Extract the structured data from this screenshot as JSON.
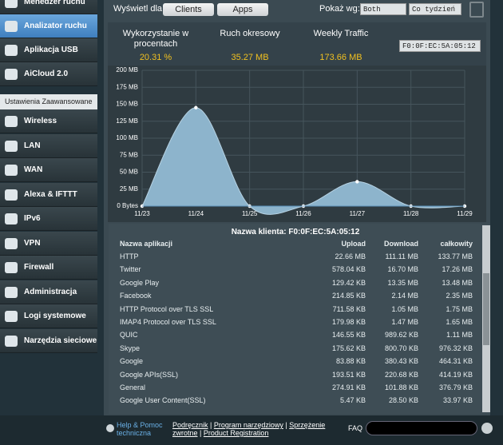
{
  "sidebar": {
    "top_items": [
      "Menedżer ruchu",
      "Analizator ruchu",
      "Aplikacja USB",
      "AiCloud 2.0"
    ],
    "section": "Ustawienia Zaawansowane",
    "items": [
      "Wireless",
      "LAN",
      "WAN",
      "Alexa & IFTTT",
      "IPv6",
      "VPN",
      "Firewall",
      "Administracja",
      "Logi systemowe",
      "Narzędzia sieciowe"
    ]
  },
  "toolbar": {
    "view_label": "Wyświetl dla:",
    "buttons": [
      "Clients",
      "Apps"
    ],
    "show_label": "Pokaż wg:",
    "direction": "Both",
    "period": "Co tydzień"
  },
  "stats": [
    {
      "label": "Wykorzystanie w procentach",
      "value": "20.31 %"
    },
    {
      "label": "Ruch okresowy",
      "value": "35.27 MB"
    },
    {
      "label": "Weekly Traffic",
      "value": "173.66 MB"
    }
  ],
  "client_select": "F0:0F:EC:5A:05:12",
  "chart_data": {
    "type": "area",
    "categories": [
      "11/23",
      "11/24",
      "11/25",
      "11/26",
      "11/27",
      "11/28",
      "11/29"
    ],
    "values": [
      0,
      145,
      0,
      0,
      36,
      0,
      0
    ],
    "color": "#8db4cc",
    "ylim": [
      0,
      200
    ],
    "yticks": [
      {
        "value": 0,
        "label": "0 Bytes"
      },
      {
        "value": 25,
        "label": "25 MB"
      },
      {
        "value": 50,
        "label": "50 MB"
      },
      {
        "value": 75,
        "label": "75 MB"
      },
      {
        "value": 100,
        "label": "100 MB"
      },
      {
        "value": 125,
        "label": "125 MB"
      },
      {
        "value": 150,
        "label": "150 MB"
      },
      {
        "value": 175,
        "label": "175 MB"
      },
      {
        "value": 200,
        "label": "200 MB"
      }
    ],
    "grid": true
  },
  "table": {
    "title": "Nazwa klienta: F0:0F:EC:5A:05:12",
    "columns": [
      "Nazwa aplikacji",
      "Upload",
      "Download",
      "całkowity"
    ],
    "rows": [
      [
        "HTTP",
        "22.66 MB",
        "111.11 MB",
        "133.77 MB"
      ],
      [
        "Twitter",
        "578.04 KB",
        "16.70 MB",
        "17.26 MB"
      ],
      [
        "Google Play",
        "129.42 KB",
        "13.35 MB",
        "13.48 MB"
      ],
      [
        "Facebook",
        "214.85 KB",
        "2.14 MB",
        "2.35 MB"
      ],
      [
        "HTTP Protocol over TLS SSL",
        "711.58 KB",
        "1.05 MB",
        "1.75 MB"
      ],
      [
        "IMAP4 Protocol over TLS SSL",
        "179.98 KB",
        "1.47 MB",
        "1.65 MB"
      ],
      [
        "QUIC",
        "146.55 KB",
        "989.62 KB",
        "1.11 MB"
      ],
      [
        "Skype",
        "175.62 KB",
        "800.70 KB",
        "976.32 KB"
      ],
      [
        "Google",
        "83.88 KB",
        "380.43 KB",
        "464.31 KB"
      ],
      [
        "Google APIs(SSL)",
        "193.51 KB",
        "220.68 KB",
        "414.19 KB"
      ],
      [
        "General",
        "274.91 KB",
        "101.88 KB",
        "376.79 KB"
      ],
      [
        "Google User Content(SSL)",
        "5.47 KB",
        "28.50 KB",
        "33.97 KB"
      ]
    ]
  },
  "footer": {
    "help": "Help & Pomoc techniczna",
    "links": [
      "Podręcznik",
      "Program narzędziowy",
      "Sprzężenie zwrotne",
      "Product Registration"
    ],
    "faq": "FAQ"
  }
}
